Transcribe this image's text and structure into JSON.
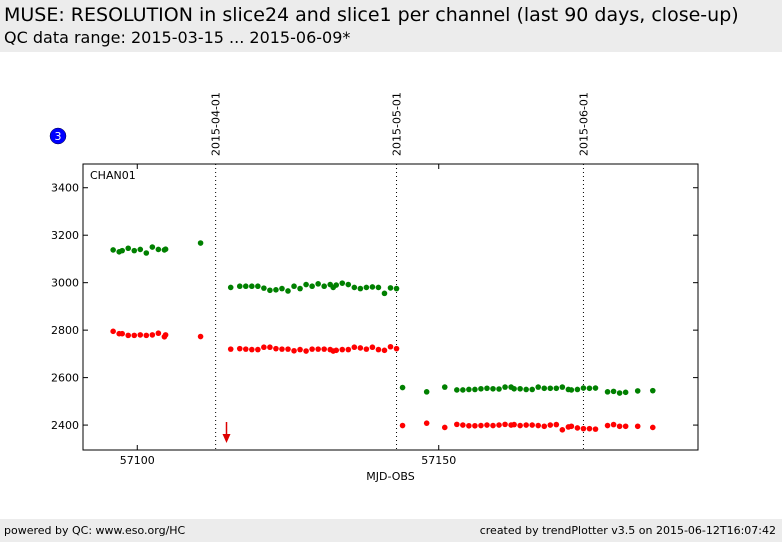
{
  "header": {
    "title": "MUSE: RESOLUTION in slice24 and slice1 per channel (last 90 days, close-up)",
    "subtitle": "QC data range: 2015-03-15 ... 2015-06-09*"
  },
  "footer": {
    "left": "powered by QC: www.eso.org/HC",
    "right": "created by trendPlotter v3.5 on 2015-06-12T16:07:42"
  },
  "badge": {
    "label": "3",
    "color": "#0000ff"
  },
  "chart_data": {
    "type": "scatter",
    "panel_label": "CHAN01",
    "xlabel": "MJD-OBS",
    "ylabel": "",
    "xlim": [
      57091,
      57193
    ],
    "ylim": [
      2295,
      3500
    ],
    "x_ticks": [
      57100,
      57150
    ],
    "x_tick_labels": [
      "57100",
      "57150"
    ],
    "y_ticks": [
      2400,
      2600,
      2800,
      3000,
      3200,
      3400
    ],
    "y_tick_labels": [
      "2400",
      "2600",
      "2800",
      "3000",
      "3200",
      "3400"
    ],
    "grid": false,
    "date_markers": [
      {
        "mjd": 57113.0,
        "label": "2015-04-01"
      },
      {
        "mjd": 57143.0,
        "label": "2015-05-01"
      },
      {
        "mjd": 57174.0,
        "label": "2015-06-01"
      }
    ],
    "outlier_arrow": {
      "x": 57114.8,
      "color": "#dd0000"
    },
    "series": [
      {
        "color": "#008000",
        "points": [
          [
            57096,
            3138
          ],
          [
            57097,
            3130
          ],
          [
            57097.5,
            3135
          ],
          [
            57098.5,
            3145
          ],
          [
            57099.5,
            3135
          ],
          [
            57100.5,
            3140
          ],
          [
            57101.5,
            3125
          ],
          [
            57102.5,
            3150
          ],
          [
            57103.5,
            3140
          ],
          [
            57104.5,
            3138
          ],
          [
            57104.7,
            3141
          ],
          [
            57110.5,
            3167
          ],
          [
            57115.5,
            2980
          ],
          [
            57117,
            2985
          ],
          [
            57118,
            2985
          ],
          [
            57119,
            2985
          ],
          [
            57120,
            2985
          ],
          [
            57121,
            2977
          ],
          [
            57122,
            2968
          ],
          [
            57123,
            2970
          ],
          [
            57124,
            2975
          ],
          [
            57125,
            2965
          ],
          [
            57126,
            2985
          ],
          [
            57127,
            2975
          ],
          [
            57128,
            2992
          ],
          [
            57129,
            2985
          ],
          [
            57130,
            2995
          ],
          [
            57131,
            2985
          ],
          [
            57132,
            2992
          ],
          [
            57132.5,
            2980
          ],
          [
            57133,
            2990
          ],
          [
            57134,
            2998
          ],
          [
            57135,
            2992
          ],
          [
            57136,
            2980
          ],
          [
            57137,
            2975
          ],
          [
            57138,
            2980
          ],
          [
            57139,
            2982
          ],
          [
            57140,
            2980
          ],
          [
            57141,
            2955
          ],
          [
            57142,
            2978
          ],
          [
            57143,
            2975
          ],
          [
            57144,
            2558
          ],
          [
            57148,
            2540
          ],
          [
            57151,
            2560
          ],
          [
            57153,
            2548
          ],
          [
            57154,
            2548
          ],
          [
            57155,
            2550
          ],
          [
            57156,
            2550
          ],
          [
            57157,
            2553
          ],
          [
            57158,
            2555
          ],
          [
            57159,
            2553
          ],
          [
            57160,
            2552
          ],
          [
            57161,
            2560
          ],
          [
            57162,
            2560
          ],
          [
            57162.5,
            2553
          ],
          [
            57163.5,
            2553
          ],
          [
            57164.5,
            2550
          ],
          [
            57165.5,
            2550
          ],
          [
            57166.5,
            2560
          ],
          [
            57167.5,
            2555
          ],
          [
            57168.5,
            2555
          ],
          [
            57169.5,
            2555
          ],
          [
            57170.5,
            2560
          ],
          [
            57171.5,
            2550
          ],
          [
            57172,
            2548
          ],
          [
            57173,
            2550
          ],
          [
            57174,
            2556
          ],
          [
            57175,
            2555
          ],
          [
            57176,
            2556
          ],
          [
            57178,
            2540
          ],
          [
            57179,
            2542
          ],
          [
            57180,
            2535
          ],
          [
            57181,
            2538
          ],
          [
            57183,
            2544
          ],
          [
            57185.5,
            2545
          ]
        ]
      },
      {
        "color": "#ff0000",
        "points": [
          [
            57096,
            2795
          ],
          [
            57097,
            2785
          ],
          [
            57097.5,
            2785
          ],
          [
            57098.5,
            2778
          ],
          [
            57099.5,
            2778
          ],
          [
            57100.5,
            2780
          ],
          [
            57101.5,
            2778
          ],
          [
            57102.5,
            2780
          ],
          [
            57103.5,
            2787
          ],
          [
            57104.5,
            2772
          ],
          [
            57104.7,
            2780
          ],
          [
            57110.5,
            2773
          ],
          [
            57115.5,
            2720
          ],
          [
            57117,
            2722
          ],
          [
            57118,
            2720
          ],
          [
            57119,
            2718
          ],
          [
            57120,
            2718
          ],
          [
            57121,
            2728
          ],
          [
            57122,
            2728
          ],
          [
            57123,
            2722
          ],
          [
            57124,
            2720
          ],
          [
            57125,
            2720
          ],
          [
            57126,
            2713
          ],
          [
            57127,
            2718
          ],
          [
            57128,
            2712
          ],
          [
            57129,
            2720
          ],
          [
            57130,
            2720
          ],
          [
            57131,
            2720
          ],
          [
            57132,
            2718
          ],
          [
            57132.5,
            2712
          ],
          [
            57133,
            2715
          ],
          [
            57134,
            2718
          ],
          [
            57135,
            2718
          ],
          [
            57136,
            2728
          ],
          [
            57137,
            2725
          ],
          [
            57138,
            2720
          ],
          [
            57139,
            2728
          ],
          [
            57140,
            2718
          ],
          [
            57141,
            2715
          ],
          [
            57142,
            2730
          ],
          [
            57143,
            2722
          ],
          [
            57144,
            2398
          ],
          [
            57148,
            2408
          ],
          [
            57151,
            2390
          ],
          [
            57153,
            2403
          ],
          [
            57154,
            2400
          ],
          [
            57155,
            2397
          ],
          [
            57156,
            2397
          ],
          [
            57157,
            2398
          ],
          [
            57158,
            2400
          ],
          [
            57159,
            2398
          ],
          [
            57160,
            2400
          ],
          [
            57161,
            2403
          ],
          [
            57162,
            2400
          ],
          [
            57162.5,
            2402
          ],
          [
            57163.5,
            2398
          ],
          [
            57164.5,
            2400
          ],
          [
            57165.5,
            2400
          ],
          [
            57166.5,
            2398
          ],
          [
            57167.5,
            2395
          ],
          [
            57168.5,
            2400
          ],
          [
            57169.5,
            2402
          ],
          [
            57170.5,
            2380
          ],
          [
            57171.5,
            2392
          ],
          [
            57172,
            2395
          ],
          [
            57173,
            2388
          ],
          [
            57174,
            2385
          ],
          [
            57175,
            2385
          ],
          [
            57176,
            2383
          ],
          [
            57178,
            2398
          ],
          [
            57179,
            2402
          ],
          [
            57180,
            2395
          ],
          [
            57181,
            2395
          ],
          [
            57183,
            2395
          ],
          [
            57185.5,
            2390
          ]
        ]
      }
    ]
  }
}
